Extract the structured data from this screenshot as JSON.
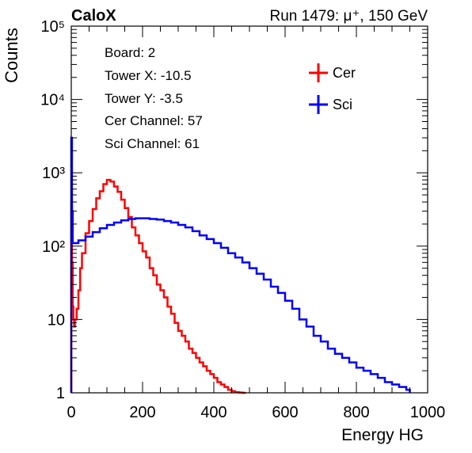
{
  "header": {
    "experiment": "CaloX",
    "run_info": "Run 1479:   μ⁺, 150 GeV"
  },
  "info_box": [
    "Board: 2",
    "Tower X: -10.5",
    "Tower Y: -3.5",
    "Cer Channel: 57",
    "Sci Channel: 61"
  ],
  "chart_data": {
    "type": "line",
    "style": "histogram-step",
    "xlabel": "Energy HG",
    "ylabel": "Counts",
    "xlim": [
      0,
      1000
    ],
    "ylim": [
      1,
      100000
    ],
    "y_scale": "log",
    "x_ticks": [
      "0",
      "200",
      "400",
      "600",
      "800",
      "1000"
    ],
    "y_ticks": [
      {
        "value": 1,
        "label": "1"
      },
      {
        "value": 10,
        "label": "10"
      },
      {
        "value": 100,
        "label": "10²"
      },
      {
        "value": 1000,
        "label": "10³"
      },
      {
        "value": 10000,
        "label": "10⁴"
      },
      {
        "value": 100000,
        "label": "10⁵"
      }
    ],
    "grid": false,
    "legend_position": "top-right",
    "series": [
      {
        "name": "Cer",
        "color": "#ff0000",
        "x": [
          0,
          2,
          4,
          6,
          8,
          10,
          15,
          20,
          25,
          30,
          40,
          50,
          60,
          70,
          80,
          90,
          100,
          110,
          120,
          130,
          140,
          150,
          160,
          170,
          180,
          190,
          200,
          210,
          220,
          230,
          240,
          250,
          260,
          270,
          280,
          290,
          300,
          310,
          320,
          330,
          340,
          350,
          360,
          370,
          380,
          390,
          400,
          410,
          420,
          430,
          440,
          450,
          460,
          470,
          480
        ],
        "y": [
          400,
          60,
          15,
          10,
          8,
          10,
          14,
          25,
          50,
          80,
          150,
          220,
          320,
          450,
          560,
          700,
          800,
          760,
          650,
          550,
          430,
          330,
          250,
          180,
          140,
          110,
          85,
          70,
          50,
          40,
          30,
          25,
          20,
          15,
          12,
          9,
          7,
          6,
          5,
          4,
          3.5,
          3,
          2.6,
          2.3,
          2,
          1.8,
          1.6,
          1.4,
          1.3,
          1.2,
          1.1,
          1.05,
          1.02,
          1.01,
          1
        ]
      },
      {
        "name": "Sci",
        "color": "#0000ff",
        "x": [
          0,
          2,
          4,
          6,
          10,
          20,
          40,
          60,
          80,
          100,
          120,
          140,
          160,
          180,
          200,
          220,
          240,
          260,
          280,
          300,
          320,
          340,
          360,
          380,
          400,
          420,
          440,
          460,
          480,
          500,
          520,
          540,
          560,
          580,
          600,
          620,
          640,
          660,
          680,
          700,
          720,
          740,
          760,
          780,
          800,
          820,
          840,
          860,
          880,
          900,
          920,
          940
        ],
        "y": [
          3000,
          300,
          110,
          110,
          110,
          120,
          135,
          155,
          175,
          195,
          210,
          225,
          235,
          240,
          240,
          235,
          230,
          220,
          210,
          195,
          180,
          160,
          140,
          125,
          110,
          95,
          80,
          70,
          60,
          50,
          42,
          35,
          28,
          23,
          18,
          14,
          10,
          8,
          6,
          5,
          4,
          3.4,
          3,
          2.6,
          2.2,
          2,
          1.8,
          1.6,
          1.4,
          1.3,
          1.2,
          1.1
        ]
      }
    ]
  }
}
